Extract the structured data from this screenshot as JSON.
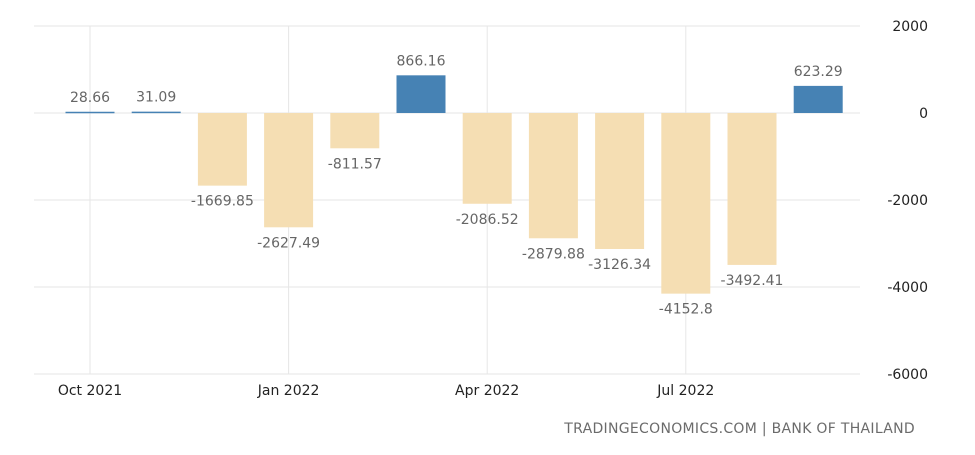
{
  "chart_data": {
    "type": "bar",
    "categories": [
      "Oct 2021",
      "Nov 2021",
      "Dec 2021",
      "Jan 2022",
      "Feb 2022",
      "Mar 2022",
      "Apr 2022",
      "May 2022",
      "Jun 2022",
      "Jul 2022",
      "Aug 2022",
      "Sep 2022"
    ],
    "values": [
      28.66,
      31.09,
      -1669.85,
      -2627.49,
      -811.57,
      866.16,
      -2086.52,
      -2879.88,
      -3126.34,
      -4152.8,
      -3492.41,
      623.29
    ],
    "data_labels": [
      "28.66",
      "31.09",
      "-1669.85",
      "-2627.49",
      "-811.57",
      "866.16",
      "-2086.52",
      "-2879.88",
      "-3126.34",
      "-4152.8",
      "-3492.41",
      "623.29"
    ],
    "x_tick_labels": [
      "Oct 2021",
      "Jan 2022",
      "Apr 2022",
      "Jul 2022"
    ],
    "y_ticks": [
      2000,
      0,
      -2000,
      -4000,
      -6000
    ],
    "ylim": [
      -6000,
      2000
    ],
    "y_axis_side": "right",
    "grid": true,
    "title": "",
    "xlabel": "",
    "ylabel": "",
    "colors": {
      "positive": "#4682b4",
      "negative": "#f5deb3",
      "grid": "#e6e6e6"
    }
  },
  "source": "TRADINGECONOMICS.COM | BANK OF THAILAND"
}
